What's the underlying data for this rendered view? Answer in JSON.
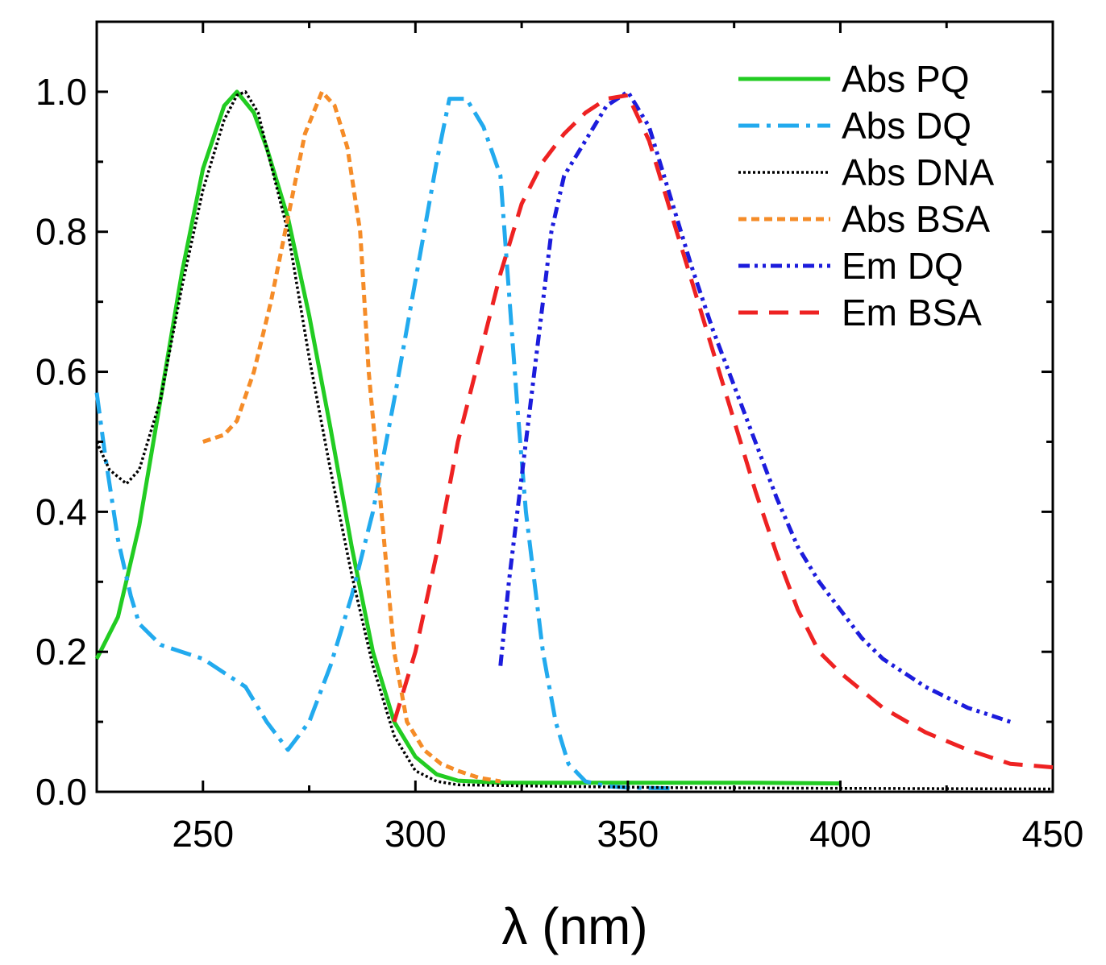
{
  "chart_data": {
    "type": "line",
    "title": "",
    "xlabel": "λ (nm)",
    "ylabel": "",
    "xlim": [
      225,
      450
    ],
    "ylim": [
      0,
      1.1
    ],
    "x_ticks": [
      250,
      300,
      350,
      400,
      450
    ],
    "x_tick_labels": [
      "250",
      "300",
      "350",
      "400",
      "450"
    ],
    "y_ticks": [
      0.0,
      0.2,
      0.4,
      0.6,
      0.8,
      1.0
    ],
    "y_tick_labels": [
      "0.0",
      "0.2",
      "0.4",
      "0.6",
      "0.8",
      "1.0"
    ],
    "grid": false,
    "legend_position": "top-right",
    "series": [
      {
        "name": "Abs PQ",
        "color": "#22cc22",
        "dash": "solid",
        "points": [
          [
            225,
            0.19
          ],
          [
            230,
            0.25
          ],
          [
            235,
            0.38
          ],
          [
            240,
            0.56
          ],
          [
            245,
            0.74
          ],
          [
            250,
            0.89
          ],
          [
            255,
            0.98
          ],
          [
            258,
            1.0
          ],
          [
            262,
            0.97
          ],
          [
            265,
            0.92
          ],
          [
            270,
            0.82
          ],
          [
            275,
            0.68
          ],
          [
            280,
            0.52
          ],
          [
            285,
            0.35
          ],
          [
            290,
            0.2
          ],
          [
            295,
            0.1
          ],
          [
            300,
            0.05
          ],
          [
            305,
            0.025
          ],
          [
            310,
            0.016
          ],
          [
            320,
            0.013
          ],
          [
            340,
            0.013
          ],
          [
            360,
            0.013
          ],
          [
            380,
            0.013
          ],
          [
            400,
            0.012
          ]
        ]
      },
      {
        "name": "Abs DQ",
        "color": "#22aaee",
        "dash": "dashdot",
        "points": [
          [
            225,
            0.57
          ],
          [
            227,
            0.48
          ],
          [
            230,
            0.36
          ],
          [
            233,
            0.28
          ],
          [
            235,
            0.24
          ],
          [
            240,
            0.21
          ],
          [
            245,
            0.2
          ],
          [
            250,
            0.19
          ],
          [
            255,
            0.17
          ],
          [
            260,
            0.15
          ],
          [
            265,
            0.1
          ],
          [
            270,
            0.06
          ],
          [
            275,
            0.1
          ],
          [
            280,
            0.18
          ],
          [
            285,
            0.28
          ],
          [
            290,
            0.4
          ],
          [
            295,
            0.56
          ],
          [
            300,
            0.73
          ],
          [
            305,
            0.9
          ],
          [
            308,
            0.99
          ],
          [
            312,
            0.99
          ],
          [
            316,
            0.95
          ],
          [
            320,
            0.88
          ],
          [
            324,
            0.55
          ],
          [
            326,
            0.4
          ],
          [
            330,
            0.2
          ],
          [
            333,
            0.1
          ],
          [
            336,
            0.04
          ],
          [
            340,
            0.015
          ],
          [
            345,
            0.008
          ],
          [
            350,
            0.006
          ],
          [
            360,
            0.005
          ]
        ]
      },
      {
        "name": "Abs DNA",
        "color": "#000000",
        "dash": "dotted",
        "points": [
          [
            225,
            0.5
          ],
          [
            228,
            0.46
          ],
          [
            232,
            0.44
          ],
          [
            235,
            0.46
          ],
          [
            240,
            0.56
          ],
          [
            245,
            0.72
          ],
          [
            250,
            0.86
          ],
          [
            255,
            0.96
          ],
          [
            258,
            0.995
          ],
          [
            260,
            1.0
          ],
          [
            263,
            0.97
          ],
          [
            265,
            0.92
          ],
          [
            270,
            0.8
          ],
          [
            275,
            0.62
          ],
          [
            280,
            0.46
          ],
          [
            285,
            0.31
          ],
          [
            290,
            0.18
          ],
          [
            295,
            0.08
          ],
          [
            300,
            0.03
          ],
          [
            305,
            0.015
          ],
          [
            310,
            0.01
          ],
          [
            330,
            0.008
          ],
          [
            360,
            0.006
          ],
          [
            400,
            0.005
          ],
          [
            450,
            0.004
          ]
        ]
      },
      {
        "name": "Abs BSA",
        "color": "#f58c28",
        "dash": "shortdash",
        "points": [
          [
            250,
            0.5
          ],
          [
            255,
            0.51
          ],
          [
            258,
            0.53
          ],
          [
            262,
            0.6
          ],
          [
            266,
            0.7
          ],
          [
            270,
            0.82
          ],
          [
            274,
            0.94
          ],
          [
            278,
            1.0
          ],
          [
            281,
            0.98
          ],
          [
            284,
            0.92
          ],
          [
            287,
            0.8
          ],
          [
            289,
            0.6
          ],
          [
            292,
            0.4
          ],
          [
            295,
            0.2
          ],
          [
            298,
            0.1
          ],
          [
            302,
            0.06
          ],
          [
            306,
            0.04
          ],
          [
            310,
            0.03
          ],
          [
            315,
            0.02
          ],
          [
            320,
            0.015
          ]
        ]
      },
      {
        "name": "Em DQ",
        "color": "#1c1cdc",
        "dash": "dashdotdot",
        "points": [
          [
            320,
            0.18
          ],
          [
            322,
            0.3
          ],
          [
            324,
            0.4
          ],
          [
            326,
            0.5
          ],
          [
            328,
            0.6
          ],
          [
            330,
            0.7
          ],
          [
            332,
            0.8
          ],
          [
            335,
            0.88
          ],
          [
            340,
            0.93
          ],
          [
            345,
            0.98
          ],
          [
            350,
            1.0
          ],
          [
            355,
            0.95
          ],
          [
            360,
            0.85
          ],
          [
            365,
            0.75
          ],
          [
            370,
            0.66
          ],
          [
            375,
            0.58
          ],
          [
            380,
            0.5
          ],
          [
            385,
            0.42
          ],
          [
            390,
            0.35
          ],
          [
            395,
            0.3
          ],
          [
            400,
            0.26
          ],
          [
            405,
            0.22
          ],
          [
            410,
            0.19
          ],
          [
            420,
            0.15
          ],
          [
            430,
            0.12
          ],
          [
            440,
            0.1
          ]
        ]
      },
      {
        "name": "Em BSA",
        "color": "#ee2222",
        "dash": "longdash",
        "points": [
          [
            295,
            0.1
          ],
          [
            300,
            0.2
          ],
          [
            305,
            0.34
          ],
          [
            310,
            0.5
          ],
          [
            315,
            0.62
          ],
          [
            320,
            0.74
          ],
          [
            325,
            0.84
          ],
          [
            330,
            0.9
          ],
          [
            335,
            0.94
          ],
          [
            340,
            0.97
          ],
          [
            345,
            0.99
          ],
          [
            350,
            0.995
          ],
          [
            355,
            0.93
          ],
          [
            360,
            0.83
          ],
          [
            365,
            0.73
          ],
          [
            370,
            0.63
          ],
          [
            375,
            0.53
          ],
          [
            380,
            0.43
          ],
          [
            385,
            0.34
          ],
          [
            390,
            0.26
          ],
          [
            395,
            0.2
          ],
          [
            400,
            0.17
          ],
          [
            410,
            0.12
          ],
          [
            420,
            0.085
          ],
          [
            430,
            0.06
          ],
          [
            440,
            0.04
          ],
          [
            450,
            0.035
          ]
        ]
      }
    ]
  }
}
